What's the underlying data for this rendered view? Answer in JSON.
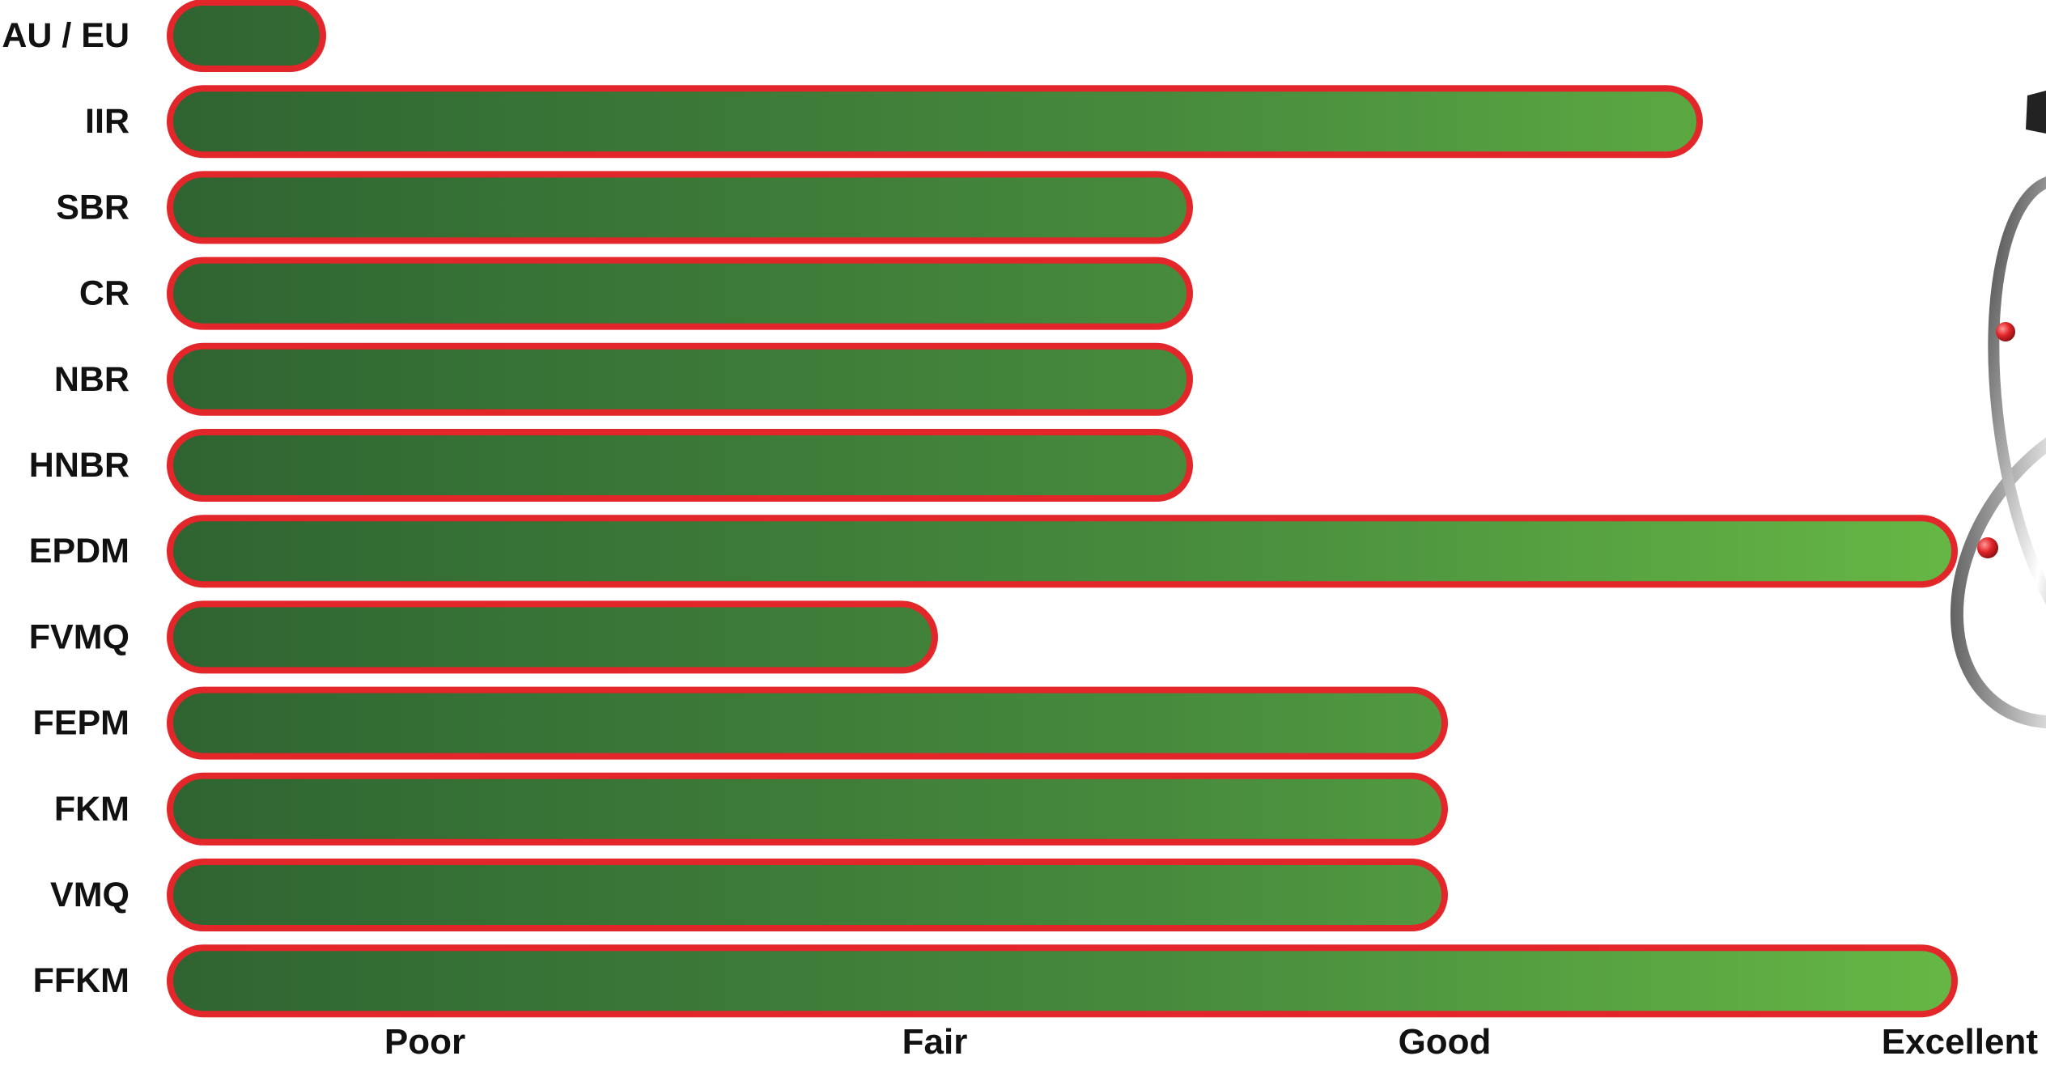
{
  "chart_data": {
    "type": "bar",
    "orientation": "horizontal",
    "categories": [
      "AU / EU",
      "IIR",
      "SBR",
      "CR",
      "NBR",
      "HNBR",
      "EPDM",
      "FVMQ",
      "FEPM",
      "FKM",
      "VMQ",
      "FFKM"
    ],
    "values": [
      0.3,
      3.0,
      2.0,
      2.0,
      2.0,
      2.0,
      3.5,
      1.5,
      2.5,
      2.5,
      2.5,
      3.5
    ],
    "xticks": [
      {
        "label": "Poor",
        "value": 0.5
      },
      {
        "label": "Fair",
        "value": 1.5
      },
      {
        "label": "Good",
        "value": 2.5
      },
      {
        "label": "Excellent",
        "value": 3.5
      }
    ],
    "xlim": [
      0,
      3.5
    ],
    "title": "",
    "xlabel": "",
    "ylabel": "",
    "grid": false,
    "colors": {
      "bar_gradient_start": "#2f6432",
      "bar_gradient_end": "#66b845",
      "bar_outline": "#e3262a",
      "label_text": "#111111"
    }
  },
  "decoration": {
    "icon": "atom-logo-icon",
    "colors": {
      "orbit": "#4a4a4a",
      "electron": "#d9262b"
    }
  }
}
